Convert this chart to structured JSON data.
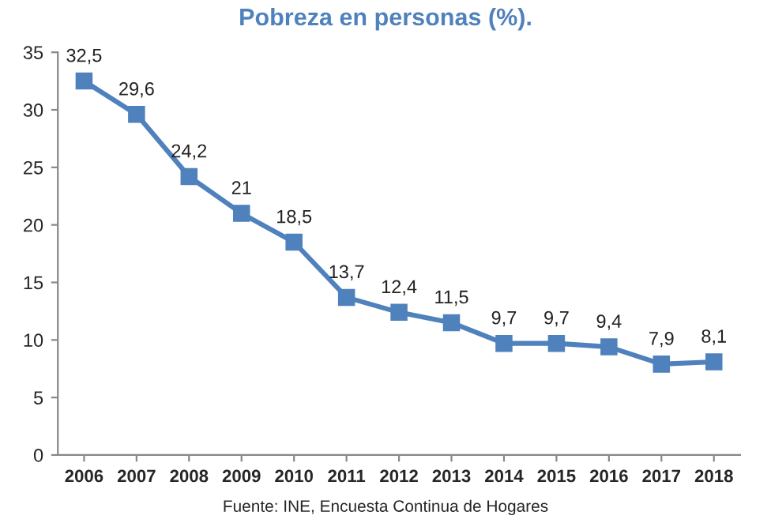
{
  "chart_data": {
    "type": "line",
    "title": "Pobreza en personas (%).",
    "categories": [
      "2006",
      "2007",
      "2008",
      "2009",
      "2010",
      "2011",
      "2012",
      "2013",
      "2014",
      "2015",
      "2016",
      "2017",
      "2018"
    ],
    "series": [
      {
        "color": "#4f81bd",
        "values": [
          32.5,
          29.6,
          24.2,
          21,
          18.5,
          13.7,
          12.4,
          11.5,
          9.7,
          9.7,
          9.4,
          7.9,
          8.1
        ],
        "value_labels": [
          "32,5",
          "29,6",
          "24,2",
          "21",
          "18,5",
          "13,7",
          "12,4",
          "11,5",
          "9,7",
          "9,7",
          "9,4",
          "7,9",
          "8,1"
        ]
      }
    ],
    "ylim": [
      0,
      35
    ],
    "yticks": [
      0,
      5,
      10,
      15,
      20,
      25,
      30,
      35
    ],
    "marker": "square",
    "line_style": "solid",
    "grid": false,
    "annotations": [
      "Fuente: INE, Encuesta Continua de Hogares"
    ]
  }
}
